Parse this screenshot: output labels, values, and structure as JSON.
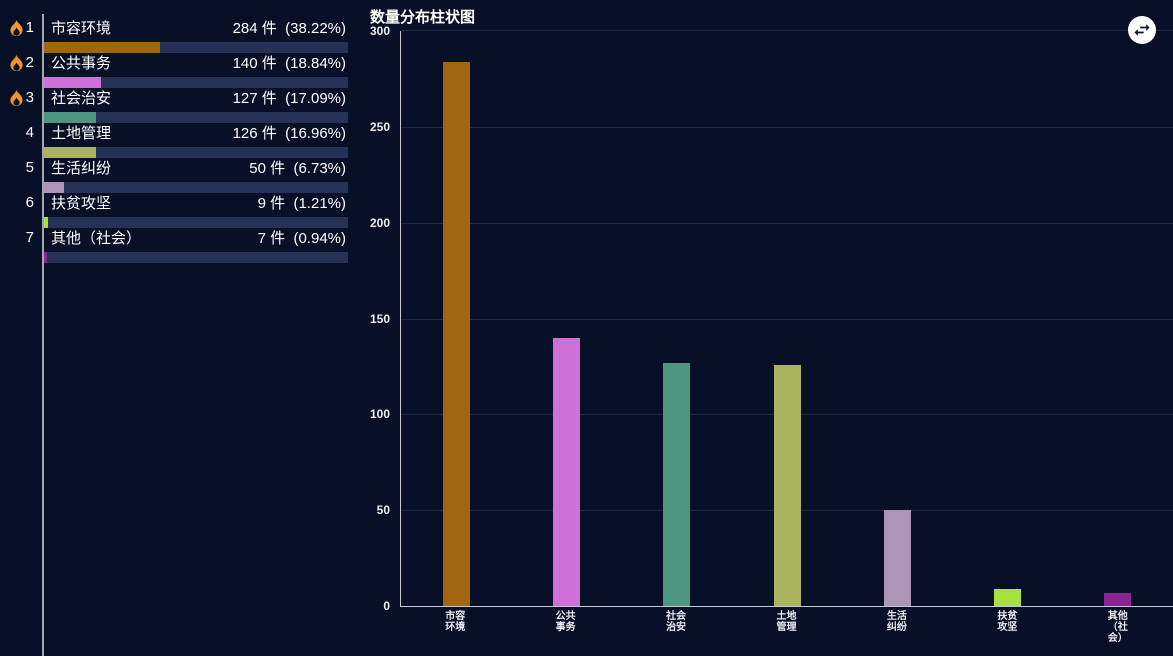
{
  "app": {
    "background": "#081027",
    "accent_track": "#263255",
    "grid_color": "#1b2846",
    "axis_color": "#c6c8d2",
    "fire_color": "#f2932b"
  },
  "ranking": {
    "items": [
      {
        "rank": "1",
        "hot": true,
        "label": "市容环境",
        "value_text": "284 件  (38.22%)",
        "count": 284,
        "percent": 38.22,
        "color": "#a1660f"
      },
      {
        "rank": "2",
        "hot": true,
        "label": "公共事务",
        "value_text": "140 件  (18.84%)",
        "count": 140,
        "percent": 18.84,
        "color": "#ce70d8"
      },
      {
        "rank": "3",
        "hot": true,
        "label": "社会治安",
        "value_text": "127 件  (17.09%)",
        "count": 127,
        "percent": 17.09,
        "color": "#4f9681"
      },
      {
        "rank": "4",
        "hot": false,
        "label": "土地管理",
        "value_text": "126 件  (16.96%)",
        "count": 126,
        "percent": 16.96,
        "color": "#aab35f"
      },
      {
        "rank": "5",
        "hot": false,
        "label": "生活纠纷",
        "value_text": "50 件  (6.73%)",
        "count": 50,
        "percent": 6.73,
        "color": "#ae94b6"
      },
      {
        "rank": "6",
        "hot": false,
        "label": "扶贫攻坚",
        "value_text": "9 件  (1.21%)",
        "count": 9,
        "percent": 1.21,
        "color": "#a9e13c"
      },
      {
        "rank": "7",
        "hot": false,
        "label": "其他（社会）",
        "value_text": "7 件  (0.94%)",
        "count": 7,
        "percent": 0.94,
        "color": "#8b2493"
      }
    ]
  },
  "toolbar": {
    "swap_icon": "swap-horizontal-icon"
  },
  "chart_data": {
    "type": "bar",
    "title": "数量分布柱状图",
    "categories": [
      "市容环境",
      "公共事务",
      "社会治安",
      "土地管理",
      "生活纠纷",
      "扶贫攻坚",
      "其他（社会）"
    ],
    "tick_labels": [
      "市容\n环境",
      "公共\n事务",
      "社会\n治安",
      "土地\n管理",
      "生活\n纠纷",
      "扶贫\n攻坚",
      "其他\n（社\n会）"
    ],
    "values": [
      284,
      140,
      127,
      126,
      50,
      9,
      7
    ],
    "colors": [
      "#a1660f",
      "#ce70d8",
      "#4f9681",
      "#aab35f",
      "#ae94b6",
      "#a9e13c",
      "#8b2493"
    ],
    "xlabel": "",
    "ylabel": "",
    "ylim": [
      0,
      300
    ],
    "yticks": [
      0,
      50,
      100,
      150,
      200,
      250,
      300
    ],
    "grid": true,
    "legend": "none"
  }
}
